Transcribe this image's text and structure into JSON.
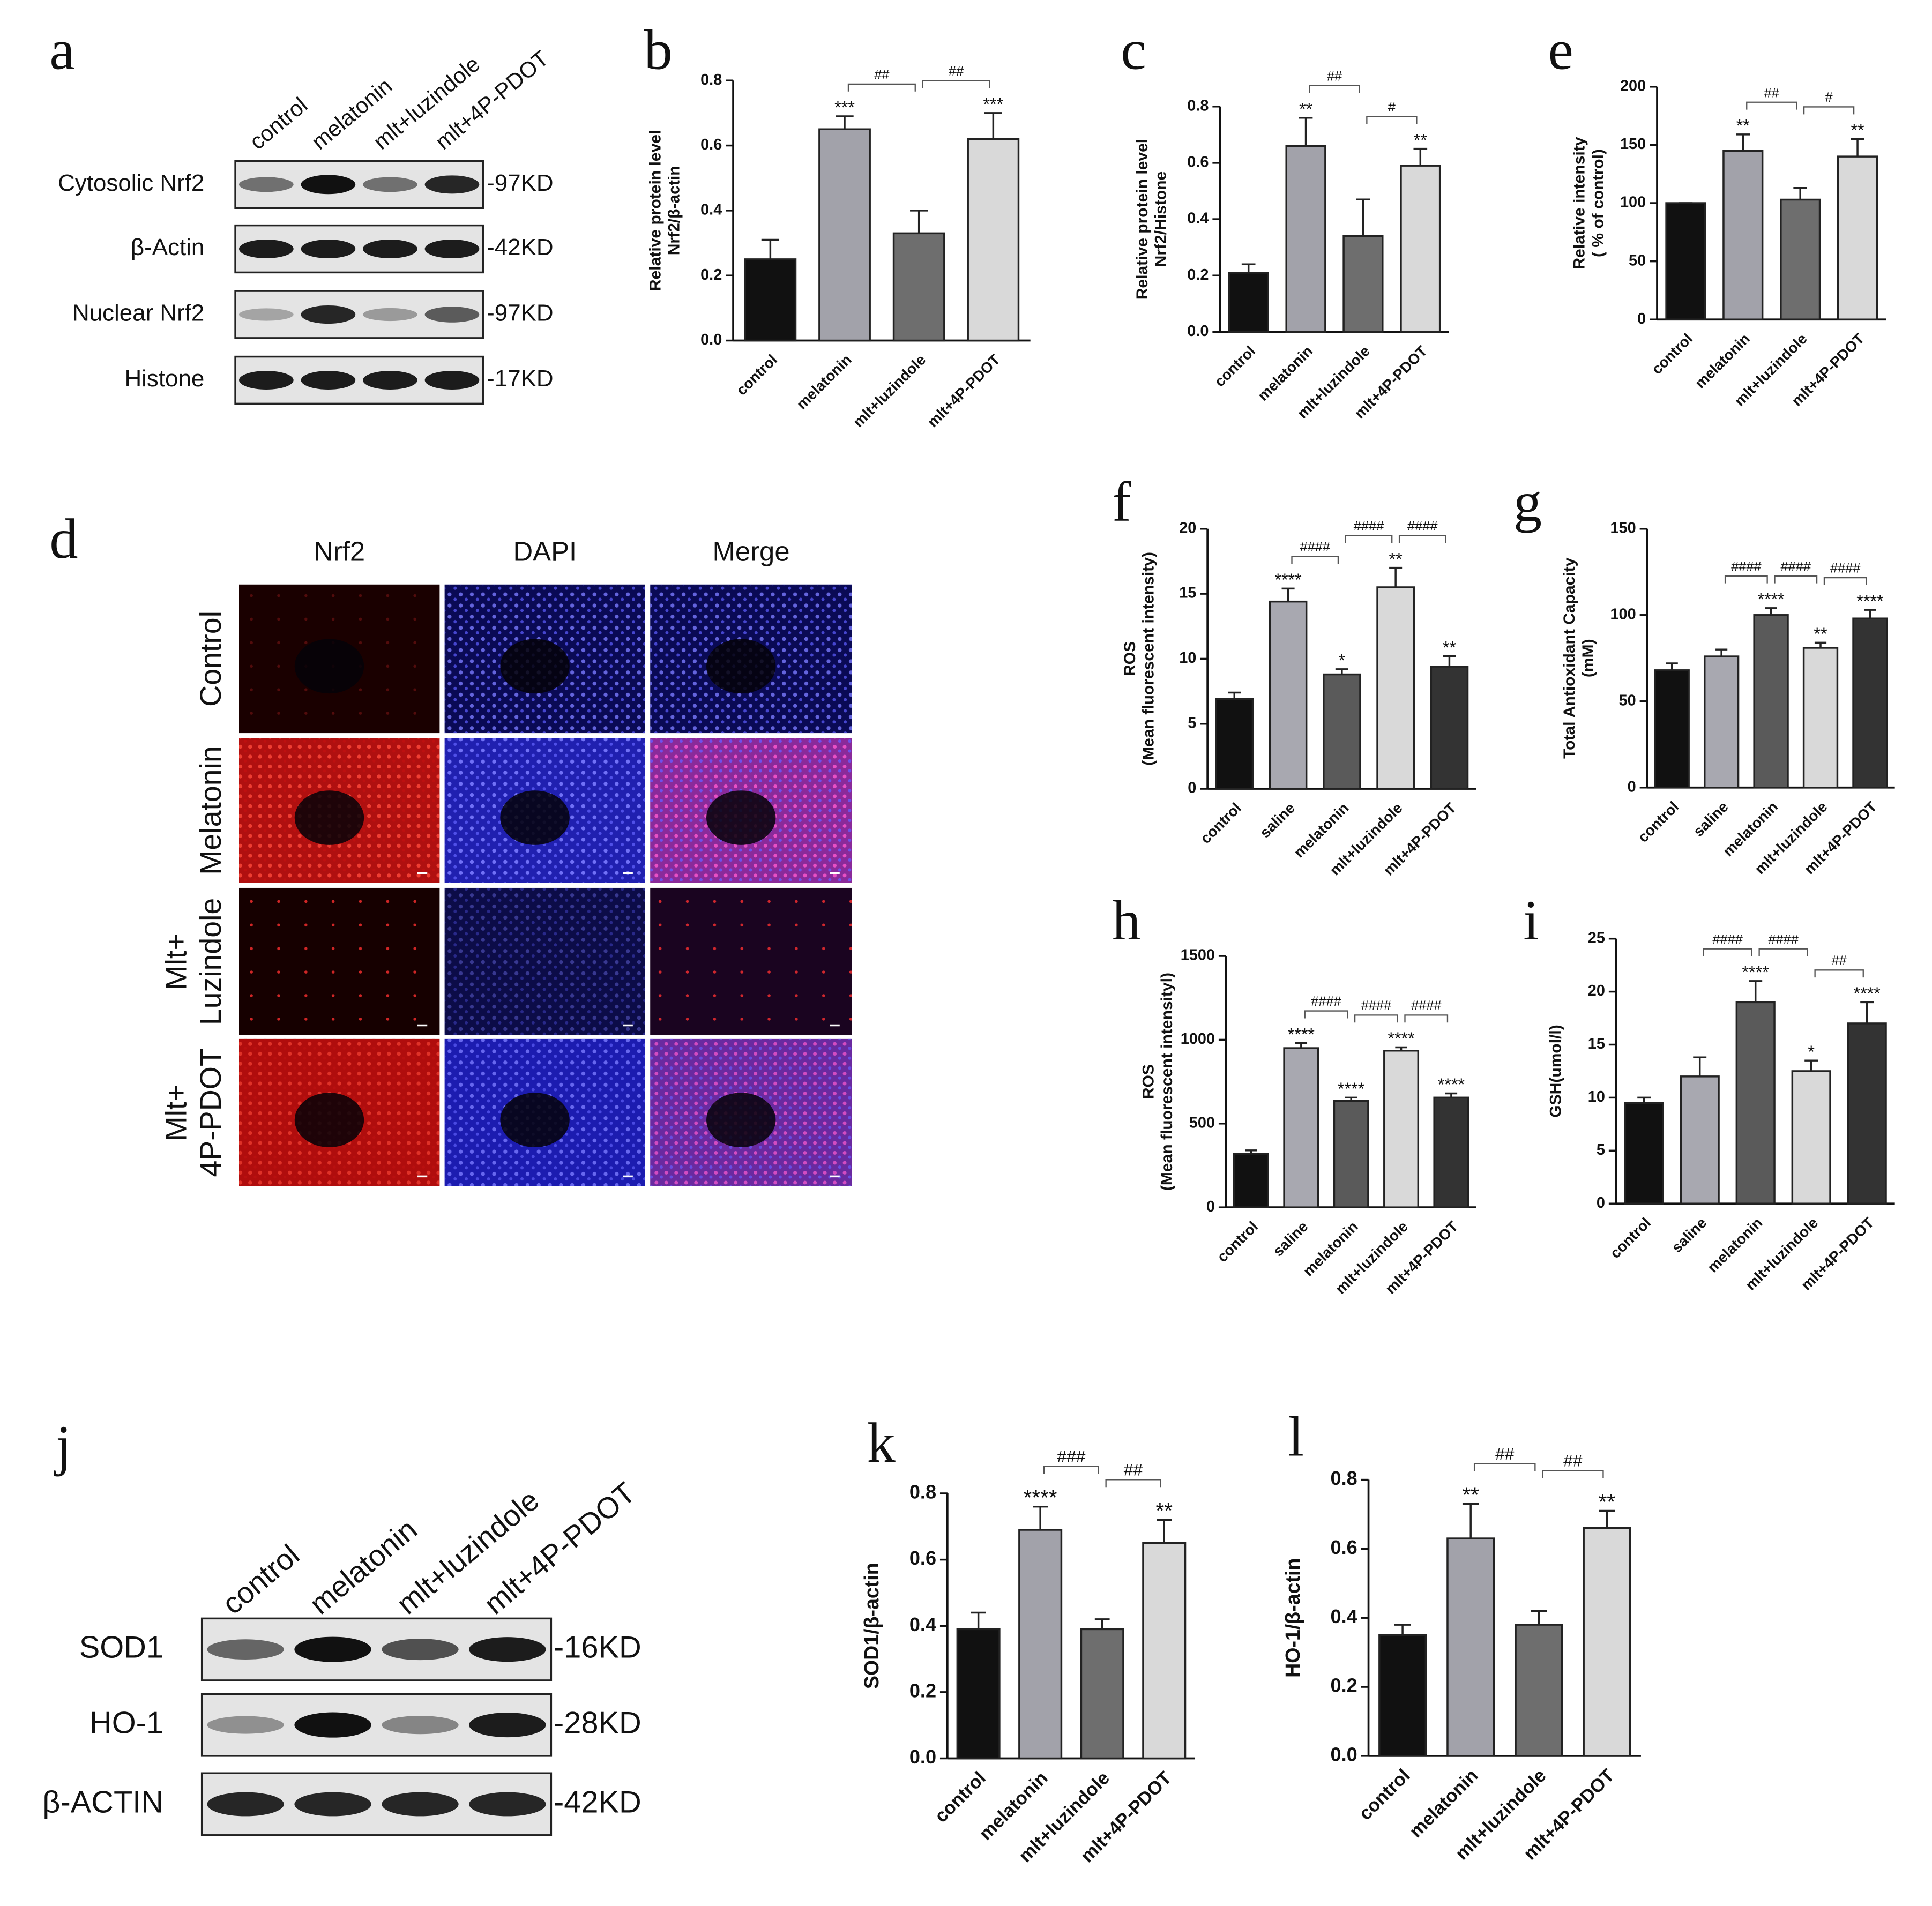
{
  "blots": [
    {
      "panel": "a",
      "lanes": [
        "control",
        "melatonin",
        "mlt+luzindole",
        "mlt+4P-PDOT"
      ],
      "rows": [
        {
          "label": "Cytosolic Nrf2",
          "size": "-97KD"
        },
        {
          "label": "β-Actin",
          "size": "-42KD"
        },
        {
          "label": "Nuclear Nrf2",
          "size": "-97KD"
        },
        {
          "label": "Histone",
          "size": "-17KD"
        }
      ]
    },
    {
      "panel": "j",
      "lanes": [
        "control",
        "melatonin",
        "mlt+luzindole",
        "mlt+4P-PDOT"
      ],
      "rows": [
        {
          "label": "SOD1",
          "size": "-16KD"
        },
        {
          "label": "HO-1",
          "size": "-28KD"
        },
        {
          "label": "β-ACTIN",
          "size": "-42KD"
        }
      ]
    }
  ],
  "micrograph": {
    "panel": "d",
    "columns": [
      "Nrf2",
      "DAPI",
      "Merge"
    ],
    "rows": [
      [
        "Control"
      ],
      [
        "Melatonin"
      ],
      [
        "Mlt+",
        "Luzindole"
      ],
      [
        "Mlt+",
        "4P-PDOT"
      ]
    ]
  },
  "chart_data": [
    {
      "type": "bar",
      "panel": "b",
      "ylabel": [
        "Relative protein level",
        "Nrf2/β-actin"
      ],
      "categories": [
        "control",
        "melatonin",
        "mlt+luzindole",
        "mlt+4P-PDOT"
      ],
      "values": [
        0.25,
        0.65,
        0.33,
        0.62
      ],
      "errors": [
        0.06,
        0.04,
        0.07,
        0.08
      ],
      "colors": [
        "#111111",
        "#a2a2aa",
        "#6e6e6e",
        "#d9d9d9"
      ],
      "star_labels": [
        null,
        "***",
        null,
        "***"
      ],
      "brackets": [
        {
          "groups": [
            1,
            2
          ],
          "label": "##"
        },
        {
          "groups": [
            2,
            3
          ],
          "label": "##"
        }
      ],
      "ylim": [
        0,
        0.8
      ],
      "yticks": [
        {
          "value": 0,
          "label": "0.0"
        },
        0.2,
        0.4,
        0.6,
        0.8
      ]
    },
    {
      "type": "bar",
      "panel": "c",
      "ylabel": [
        "Relative protein level",
        "Nrf2/Histone"
      ],
      "categories": [
        "control",
        "melatonin",
        "mlt+luzindole",
        "mlt+4P-PDOT"
      ],
      "values": [
        0.21,
        0.66,
        0.34,
        0.59
      ],
      "errors": [
        0.03,
        0.1,
        0.13,
        0.06
      ],
      "colors": [
        "#111111",
        "#a2a2aa",
        "#6e6e6e",
        "#d9d9d9"
      ],
      "star_labels": [
        null,
        "**",
        null,
        "**"
      ],
      "brackets": [
        {
          "groups": [
            1,
            2
          ],
          "label": "##"
        },
        {
          "groups": [
            2,
            3
          ],
          "label": "#"
        }
      ],
      "ylim": [
        0,
        0.8
      ],
      "yticks": [
        {
          "value": 0,
          "label": "0.0"
        },
        0.2,
        0.4,
        0.6,
        0.8
      ]
    },
    {
      "type": "bar",
      "panel": "e",
      "ylabel": [
        "Relative intensity",
        "( % of control)"
      ],
      "categories": [
        "control",
        "melatonin",
        "mlt+luzindole",
        "mlt+4P-PDOT"
      ],
      "values": [
        100,
        145,
        103,
        140
      ],
      "errors": [
        0,
        14,
        10,
        15
      ],
      "colors": [
        "#111111",
        "#a2a2aa",
        "#6e6e6e",
        "#d9d9d9"
      ],
      "star_labels": [
        null,
        "**",
        null,
        "**"
      ],
      "brackets": [
        {
          "groups": [
            1,
            2
          ],
          "label": "##"
        },
        {
          "groups": [
            2,
            3
          ],
          "label": "#"
        }
      ],
      "ylim": [
        0,
        200
      ],
      "yticks": [
        0,
        50,
        100,
        150,
        200
      ]
    },
    {
      "type": "bar",
      "panel": "f",
      "ylabel": [
        "ROS",
        "(Mean fluorescent intensity)"
      ],
      "categories": [
        "control",
        "saline",
        "melatonin",
        "mlt+luzindole",
        "mlt+4P-PDOT"
      ],
      "values": [
        6.9,
        14.4,
        8.8,
        15.5,
        9.4
      ],
      "errors": [
        0.5,
        1.0,
        0.4,
        1.5,
        0.8
      ],
      "colors": [
        "#111111",
        "#a8a8b0",
        "#5a5a5a",
        "#d9d9d9",
        "#333333"
      ],
      "star_labels": [
        null,
        "****",
        "*",
        "**",
        "**"
      ],
      "brackets": [
        {
          "groups": [
            1,
            2
          ],
          "label": "####"
        },
        {
          "groups": [
            2,
            3
          ],
          "label": "####"
        },
        {
          "groups": [
            3,
            4
          ],
          "label": "####"
        }
      ],
      "ylim": [
        0,
        20
      ],
      "yticks": [
        0,
        5,
        10,
        15,
        20
      ]
    },
    {
      "type": "bar",
      "panel": "g",
      "ylabel": [
        "Total Antioxidant Capacity",
        "(mM)"
      ],
      "categories": [
        "control",
        "saline",
        "melatonin",
        "mlt+luzindole",
        "mlt+4P-PDOT"
      ],
      "values": [
        68,
        76,
        100,
        81,
        98
      ],
      "errors": [
        4,
        4,
        4,
        3,
        5
      ],
      "colors": [
        "#111111",
        "#a8a8b0",
        "#5a5a5a",
        "#d9d9d9",
        "#333333"
      ],
      "star_labels": [
        null,
        null,
        "****",
        "**",
        "****"
      ],
      "brackets": [
        {
          "groups": [
            1,
            2
          ],
          "label": "####"
        },
        {
          "groups": [
            2,
            3
          ],
          "label": "####"
        },
        {
          "groups": [
            3,
            4
          ],
          "label": "####"
        }
      ],
      "ylim": [
        0,
        150
      ],
      "yticks": [
        0,
        50,
        100,
        150
      ]
    },
    {
      "type": "bar",
      "panel": "h",
      "ylabel": [
        "ROS",
        "(Mean fluorescent intensityl)"
      ],
      "categories": [
        "control",
        "saline",
        "melatonin",
        "mlt+luzindole",
        "mlt+4P-PDOT"
      ],
      "values": [
        320,
        950,
        635,
        935,
        655
      ],
      "errors": [
        20,
        30,
        20,
        20,
        25
      ],
      "colors": [
        "#111111",
        "#a8a8b0",
        "#5a5a5a",
        "#d9d9d9",
        "#333333"
      ],
      "star_labels": [
        null,
        "****",
        "****",
        "****",
        "****"
      ],
      "brackets": [
        {
          "groups": [
            1,
            2
          ],
          "label": "####"
        },
        {
          "groups": [
            2,
            3
          ],
          "label": "####"
        },
        {
          "groups": [
            3,
            4
          ],
          "label": "####"
        }
      ],
      "ylim": [
        0,
        1500
      ],
      "yticks": [
        0,
        500,
        1000,
        1500
      ]
    },
    {
      "type": "bar",
      "panel": "i",
      "ylabel": [
        "GSH(umol/l)"
      ],
      "categories": [
        "control",
        "saline",
        "melatonin",
        "mlt+luzindole",
        "mlt+4P-PDOT"
      ],
      "values": [
        9.5,
        12,
        19,
        12.5,
        17
      ],
      "errors": [
        0.5,
        1.8,
        2,
        1,
        2
      ],
      "colors": [
        "#111111",
        "#a8a8b0",
        "#5a5a5a",
        "#d9d9d9",
        "#333333"
      ],
      "star_labels": [
        null,
        null,
        "****",
        "*",
        "****"
      ],
      "brackets": [
        {
          "groups": [
            1,
            2
          ],
          "label": "####"
        },
        {
          "groups": [
            2,
            3
          ],
          "label": "####"
        },
        {
          "groups": [
            3,
            4
          ],
          "label": "##"
        }
      ],
      "ylim": [
        0,
        25
      ],
      "yticks": [
        0,
        5,
        10,
        15,
        20,
        25
      ]
    },
    {
      "type": "bar",
      "panel": "k",
      "ylabel": [
        "SOD1/β-actin"
      ],
      "categories": [
        "control",
        "melatonin",
        "mlt+luzindole",
        "mlt+4P-PDOT"
      ],
      "values": [
        0.39,
        0.69,
        0.39,
        0.65
      ],
      "errors": [
        0.05,
        0.07,
        0.03,
        0.07
      ],
      "colors": [
        "#111111",
        "#a2a2aa",
        "#6e6e6e",
        "#d9d9d9"
      ],
      "star_labels": [
        null,
        "****",
        null,
        "**"
      ],
      "brackets": [
        {
          "groups": [
            1,
            2
          ],
          "label": "###"
        },
        {
          "groups": [
            2,
            3
          ],
          "label": "##"
        }
      ],
      "ylim": [
        0,
        0.8
      ],
      "yticks": [
        {
          "value": 0,
          "label": "0.0"
        },
        0.2,
        0.4,
        0.6,
        0.8
      ]
    },
    {
      "type": "bar",
      "panel": "l",
      "ylabel": [
        "HO-1/β-actin"
      ],
      "categories": [
        "control",
        "melatonin",
        "mlt+luzindole",
        "mlt+4P-PDOT"
      ],
      "values": [
        0.35,
        0.63,
        0.38,
        0.66
      ],
      "errors": [
        0.03,
        0.1,
        0.04,
        0.05
      ],
      "colors": [
        "#111111",
        "#a2a2aa",
        "#6e6e6e",
        "#d9d9d9"
      ],
      "star_labels": [
        null,
        "**",
        null,
        "**"
      ],
      "brackets": [
        {
          "groups": [
            1,
            2
          ],
          "label": "##"
        },
        {
          "groups": [
            2,
            3
          ],
          "label": "##"
        }
      ],
      "ylim": [
        0,
        0.8
      ],
      "yticks": [
        {
          "value": 0,
          "label": "0.0"
        },
        0.2,
        0.4,
        0.6,
        0.8
      ]
    }
  ]
}
